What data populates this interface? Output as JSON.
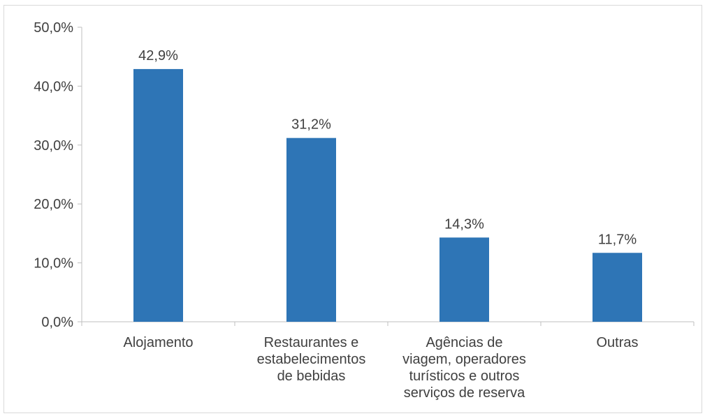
{
  "chart_data": {
    "type": "bar",
    "title": "",
    "xlabel": "",
    "ylabel": "",
    "categories": [
      [
        "Alojamento"
      ],
      [
        "Restaurantes e",
        "estabelecimentos",
        "de bebidas"
      ],
      [
        "Agências de",
        "viagem, operadores",
        "turísticos e outros",
        "serviços de reserva"
      ],
      [
        "Outras"
      ]
    ],
    "values": [
      42.9,
      31.2,
      14.3,
      11.7
    ],
    "data_labels": [
      "42,9%",
      "31,2%",
      "14,3%",
      "11,7%"
    ],
    "ylim": [
      0,
      50
    ],
    "yticks": [
      0,
      10,
      20,
      30,
      40,
      50
    ],
    "ytick_labels": [
      "0,0%",
      "10,0%",
      "20,0%",
      "30,0%",
      "40,0%",
      "50,0%"
    ],
    "grid": false,
    "legend": "none",
    "bar_color": "#2e75b6",
    "axis_color": "#bfbfbf",
    "text_color": "#404040"
  }
}
